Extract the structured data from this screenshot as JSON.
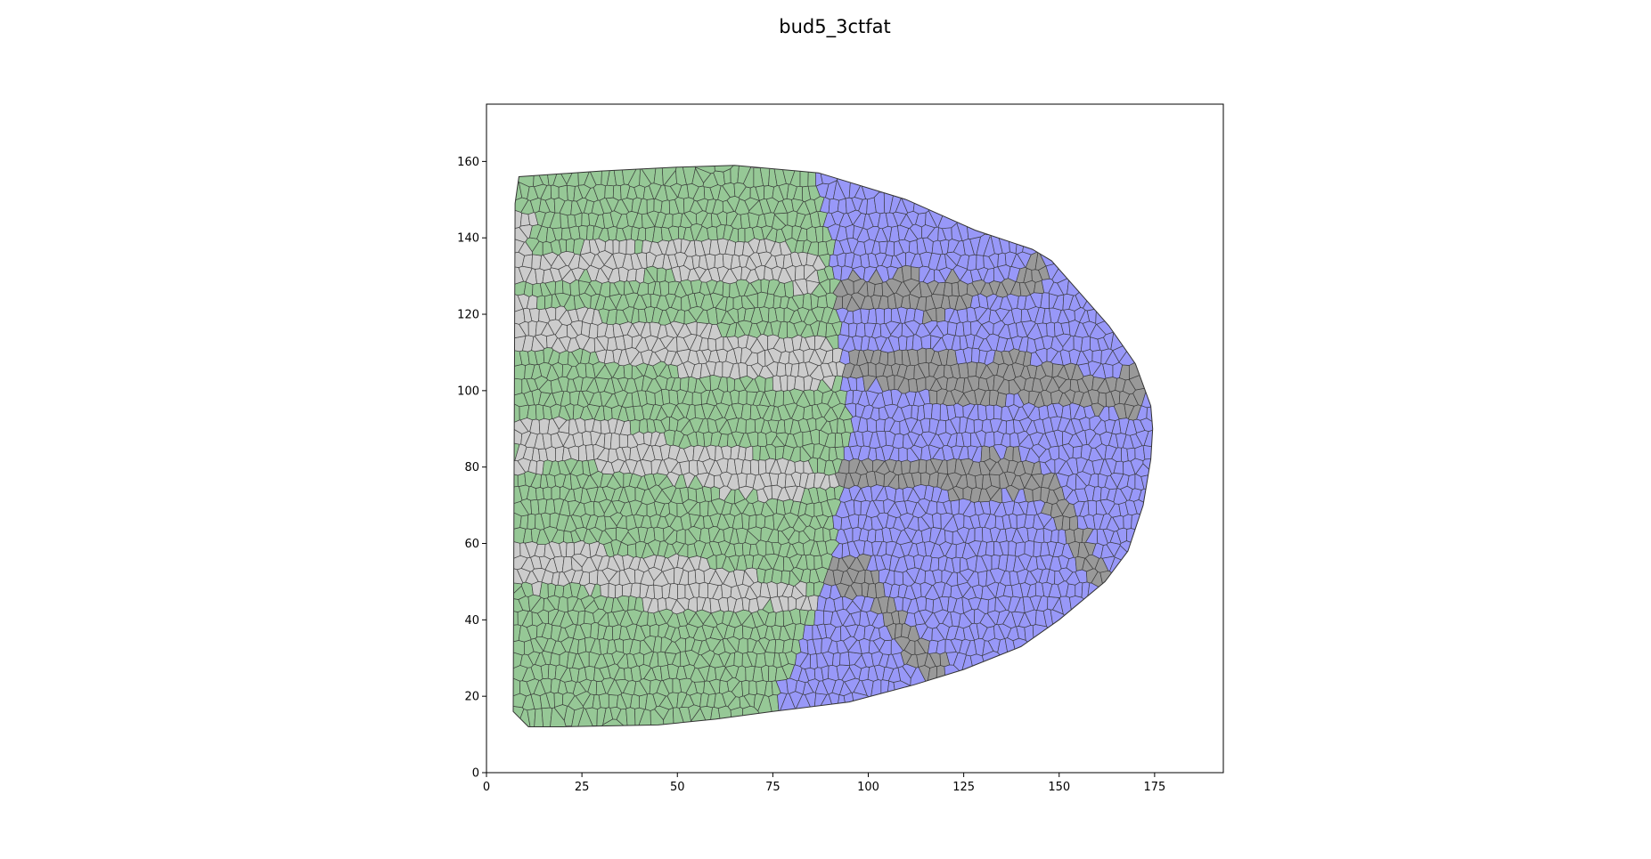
{
  "figure": {
    "title": "bud5_3ctfat"
  },
  "chart_data": {
    "type": "voronoi-tissue",
    "title": "bud5_3ctfat",
    "xlabel": "",
    "ylabel": "",
    "xlim": [
      0,
      193
    ],
    "ylim": [
      0,
      175
    ],
    "x_ticks": [
      0,
      25,
      50,
      75,
      100,
      125,
      150,
      175
    ],
    "y_ticks": [
      0,
      20,
      40,
      60,
      80,
      100,
      120,
      140,
      160
    ],
    "grid": false,
    "legend": "none",
    "colors": {
      "green": "#96c896",
      "light_gray": "#cccccc",
      "blue": "#9898f8",
      "dark_gray": "#999999"
    },
    "outline": [
      [
        7.5,
        149
      ],
      [
        8.5,
        156
      ],
      [
        30,
        157.5
      ],
      [
        50,
        158.5
      ],
      [
        65,
        159
      ],
      [
        87,
        157
      ],
      [
        110,
        150
      ],
      [
        128,
        142
      ],
      [
        143,
        137
      ],
      [
        148,
        134
      ],
      [
        163,
        117
      ],
      [
        170,
        107
      ],
      [
        174,
        96
      ],
      [
        174.5,
        90
      ],
      [
        174,
        82
      ],
      [
        172,
        70
      ],
      [
        168,
        58
      ],
      [
        162,
        50
      ],
      [
        150,
        40
      ],
      [
        140,
        33
      ],
      [
        125,
        27
      ],
      [
        112,
        23
      ],
      [
        95,
        18.5
      ],
      [
        75,
        16
      ],
      [
        60,
        14
      ],
      [
        45,
        12.5
      ],
      [
        20,
        12
      ],
      [
        11,
        12
      ],
      [
        7,
        16
      ]
    ],
    "regions": {
      "blue": [
        [
          [
            87,
            157
          ],
          [
            110,
            150
          ],
          [
            128,
            142
          ],
          [
            143,
            137
          ],
          [
            148,
            134
          ],
          [
            163,
            117
          ],
          [
            170,
            107
          ],
          [
            174,
            96
          ],
          [
            174.5,
            90
          ],
          [
            174,
            82
          ],
          [
            172,
            70
          ],
          [
            168,
            58
          ],
          [
            162,
            50
          ],
          [
            150,
            40
          ],
          [
            140,
            33
          ],
          [
            125,
            27
          ],
          [
            112,
            23
          ],
          [
            95,
            18.5
          ],
          [
            75,
            16
          ],
          [
            76,
            19
          ],
          [
            78,
            25
          ],
          [
            82,
            32
          ],
          [
            85,
            38
          ],
          [
            87,
            44
          ],
          [
            89,
            52
          ],
          [
            91,
            60
          ],
          [
            92,
            70
          ],
          [
            93,
            80
          ],
          [
            95,
            90
          ],
          [
            94,
            100
          ],
          [
            93,
            110
          ],
          [
            92,
            120
          ],
          [
            91,
            130
          ],
          [
            90,
            140
          ],
          [
            87,
            150
          ]
        ]
      ],
      "light_gray": [
        [
          [
            7.5,
            146
          ],
          [
            12,
            147
          ],
          [
            12,
            137
          ],
          [
            20,
            135
          ],
          [
            25,
            137
          ],
          [
            28,
            139
          ],
          [
            35,
            140
          ],
          [
            40,
            137
          ],
          [
            45,
            140
          ],
          [
            55,
            141
          ],
          [
            65,
            140
          ],
          [
            72,
            139
          ],
          [
            80,
            137
          ],
          [
            88,
            133
          ],
          [
            88,
            128
          ],
          [
            82,
            126
          ],
          [
            76,
            128
          ],
          [
            70,
            129
          ],
          [
            62,
            128
          ],
          [
            55,
            129
          ],
          [
            45,
            131
          ],
          [
            35,
            128
          ],
          [
            25,
            131
          ],
          [
            18,
            128
          ],
          [
            12,
            128
          ],
          [
            7.5,
            130
          ]
        ],
        [
          [
            7.5,
            125
          ],
          [
            10,
            124
          ],
          [
            20,
            122
          ],
          [
            30,
            119
          ],
          [
            45,
            118
          ],
          [
            60,
            116
          ],
          [
            70,
            114
          ],
          [
            80,
            113
          ],
          [
            88,
            114
          ],
          [
            93,
            112
          ],
          [
            94,
            104
          ],
          [
            90,
            102
          ],
          [
            82,
            101
          ],
          [
            74,
            102
          ],
          [
            65,
            104
          ],
          [
            55,
            104
          ],
          [
            45,
            106
          ],
          [
            35,
            108
          ],
          [
            25,
            109
          ],
          [
            15,
            111
          ],
          [
            7.5,
            110
          ]
        ],
        [
          [
            7.5,
            90
          ],
          [
            12,
            92
          ],
          [
            20,
            93
          ],
          [
            32,
            92
          ],
          [
            40,
            90
          ],
          [
            48,
            86
          ],
          [
            55,
            85
          ],
          [
            65,
            84
          ],
          [
            75,
            83
          ],
          [
            85,
            80
          ],
          [
            93,
            80
          ],
          [
            93,
            74
          ],
          [
            85,
            73
          ],
          [
            78,
            71
          ],
          [
            70,
            73
          ],
          [
            63,
            73
          ],
          [
            56,
            76
          ],
          [
            48,
            77
          ],
          [
            40,
            79
          ],
          [
            32,
            79
          ],
          [
            25,
            82
          ],
          [
            15,
            80
          ],
          [
            7.5,
            78
          ]
        ],
        [
          [
            7.5,
            59
          ],
          [
            15,
            60
          ],
          [
            25,
            59
          ],
          [
            35,
            58
          ],
          [
            45,
            56
          ],
          [
            55,
            55
          ],
          [
            65,
            54
          ],
          [
            70,
            52
          ],
          [
            80,
            50
          ],
          [
            86,
            47
          ],
          [
            86,
            42
          ],
          [
            80,
            42
          ],
          [
            72,
            44
          ],
          [
            65,
            43
          ],
          [
            55,
            42
          ],
          [
            48,
            41
          ],
          [
            40,
            45
          ],
          [
            30,
            48
          ],
          [
            20,
            48
          ],
          [
            12,
            48
          ],
          [
            7.5,
            48
          ]
        ]
      ],
      "dark_gray": [
        [
          [
            91,
            129
          ],
          [
            97,
            131
          ],
          [
            105,
            130
          ],
          [
            112,
            131
          ],
          [
            118,
            128
          ],
          [
            122,
            130
          ],
          [
            128,
            128
          ],
          [
            133,
            128
          ],
          [
            140,
            131
          ],
          [
            143,
            134
          ],
          [
            147,
            134
          ],
          [
            146,
            127
          ],
          [
            140,
            126
          ],
          [
            132,
            124
          ],
          [
            125,
            123
          ],
          [
            118,
            118
          ],
          [
            110,
            121
          ],
          [
            103,
            120
          ],
          [
            97,
            121
          ],
          [
            92,
            121
          ]
        ],
        [
          [
            94,
            110
          ],
          [
            100,
            111
          ],
          [
            108,
            110
          ],
          [
            115,
            111
          ],
          [
            122,
            109
          ],
          [
            130,
            108
          ],
          [
            140,
            110
          ],
          [
            145,
            107
          ],
          [
            155,
            105
          ],
          [
            163,
            104
          ],
          [
            170,
            107
          ],
          [
            173,
            100
          ],
          [
            170,
            94
          ],
          [
            163,
            94
          ],
          [
            155,
            95
          ],
          [
            148,
            96
          ],
          [
            140,
            98
          ],
          [
            130,
            97
          ],
          [
            122,
            97
          ],
          [
            115,
            99
          ],
          [
            108,
            100
          ],
          [
            100,
            102
          ],
          [
            95,
            103
          ]
        ],
        [
          [
            93,
            82
          ],
          [
            100,
            83
          ],
          [
            108,
            82
          ],
          [
            115,
            81
          ],
          [
            122,
            82
          ],
          [
            130,
            83
          ],
          [
            138,
            84
          ],
          [
            145,
            80
          ],
          [
            150,
            76
          ],
          [
            154,
            70
          ],
          [
            156,
            65
          ],
          [
            160,
            57
          ],
          [
            163,
            52
          ],
          [
            160,
            49
          ],
          [
            157,
            52
          ],
          [
            154,
            57
          ],
          [
            150,
            64
          ],
          [
            146,
            70
          ],
          [
            140,
            73
          ],
          [
            132,
            72
          ],
          [
            124,
            72
          ],
          [
            116,
            74
          ],
          [
            108,
            74
          ],
          [
            100,
            76
          ],
          [
            93,
            76
          ]
        ],
        [
          [
            89,
            56
          ],
          [
            96,
            57
          ],
          [
            100,
            55
          ],
          [
            103,
            50
          ],
          [
            107,
            45
          ],
          [
            110,
            40
          ],
          [
            113,
            35
          ],
          [
            117,
            32
          ],
          [
            121,
            30
          ],
          [
            120,
            26
          ],
          [
            116,
            26
          ],
          [
            112,
            27
          ],
          [
            108,
            32
          ],
          [
            104,
            38
          ],
          [
            100,
            44
          ],
          [
            95,
            47
          ],
          [
            90,
            49
          ]
        ]
      ]
    }
  }
}
